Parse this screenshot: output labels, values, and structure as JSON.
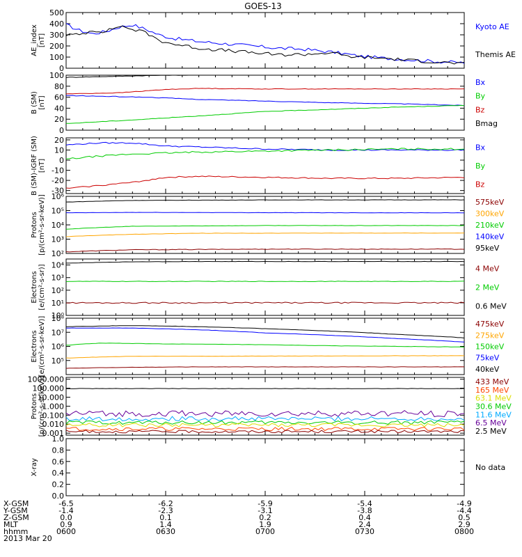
{
  "title": "GOES-13",
  "chart_data": [
    {
      "type": "line",
      "ylabel": "AE_index\n[nT]",
      "ylim": [
        0,
        500
      ],
      "yticks": [
        {
          "v": 0,
          "t": "0"
        },
        {
          "v": 100,
          "t": "100"
        },
        {
          "v": 200,
          "t": "200"
        },
        {
          "v": 300,
          "t": "300"
        },
        {
          "v": 400,
          "t": "400"
        },
        {
          "v": 500,
          "t": "500"
        }
      ],
      "legend": [
        {
          "text": "Kyoto AE",
          "color": "#0000ff"
        },
        {
          "text": "Themis AE",
          "color": "#000000"
        }
      ],
      "series": [
        {
          "name": "Kyoto AE",
          "color": "#0000ff",
          "noise": 15,
          "x": [
            0,
            4,
            8,
            12,
            16,
            20,
            24,
            28,
            32,
            40,
            48,
            56,
            64,
            72,
            80,
            84,
            88,
            96,
            104,
            112,
            120
          ],
          "y": [
            390,
            340,
            310,
            330,
            370,
            390,
            350,
            300,
            270,
            240,
            220,
            200,
            180,
            170,
            145,
            130,
            110,
            90,
            75,
            60,
            50
          ]
        },
        {
          "name": "Themis AE",
          "color": "#000000",
          "noise": 15,
          "x": [
            0,
            4,
            8,
            12,
            16,
            20,
            24,
            28,
            32,
            40,
            48,
            56,
            64,
            72,
            80,
            84,
            88,
            96,
            104,
            112,
            120
          ],
          "y": [
            300,
            300,
            340,
            330,
            380,
            350,
            320,
            250,
            220,
            180,
            160,
            140,
            120,
            125,
            140,
            110,
            100,
            90,
            70,
            55,
            40
          ]
        }
      ]
    },
    {
      "type": "line",
      "ylabel": "B (SM)\n[nT]",
      "ylim": [
        0,
        100
      ],
      "yticks": [
        {
          "v": 0,
          "t": "0"
        },
        {
          "v": 20,
          "t": "20"
        },
        {
          "v": 40,
          "t": "40"
        },
        {
          "v": 60,
          "t": "60"
        },
        {
          "v": 80,
          "t": "80"
        },
        {
          "v": 100,
          "t": "100"
        }
      ],
      "legend": [
        {
          "text": "Bx",
          "color": "#0000ff"
        },
        {
          "text": "By",
          "color": "#00cc00"
        },
        {
          "text": "Bz",
          "color": "#cc0000"
        },
        {
          "text": "Bmag",
          "color": "#000000"
        }
      ],
      "series": [
        {
          "name": "Bmag",
          "color": "#000000",
          "noise": 0.5,
          "x": [
            0,
            30,
            60,
            120
          ],
          "y": [
            96,
            100,
            101,
            102
          ]
        },
        {
          "name": "Bz",
          "color": "#cc0000",
          "noise": 0.5,
          "x": [
            0,
            16,
            30,
            40,
            60,
            120
          ],
          "y": [
            66,
            68,
            74,
            76,
            75,
            75
          ]
        },
        {
          "name": "Bx",
          "color": "#0000ff",
          "noise": 0.5,
          "x": [
            0,
            24,
            40,
            60,
            80,
            100,
            120
          ],
          "y": [
            63,
            60,
            56,
            53,
            50,
            48,
            45
          ]
        },
        {
          "name": "By",
          "color": "#00cc00",
          "noise": 0.5,
          "x": [
            0,
            24,
            40,
            60,
            80,
            100,
            120
          ],
          "y": [
            12,
            20,
            26,
            34,
            38,
            42,
            45
          ]
        }
      ]
    },
    {
      "type": "line",
      "ylabel": "B (SM)-IGRF (SM)\n[nT]",
      "ylim": [
        -33,
        22
      ],
      "yticks": [
        {
          "v": -30,
          "t": "-30"
        },
        {
          "v": -20,
          "t": "-20"
        },
        {
          "v": -10,
          "t": "-10"
        },
        {
          "v": 0,
          "t": "0"
        },
        {
          "v": 10,
          "t": "10"
        },
        {
          "v": 20,
          "t": "20"
        }
      ],
      "legend": [
        {
          "text": "Bx",
          "color": "#0000ff"
        },
        {
          "text": "By",
          "color": "#00cc00"
        },
        {
          "text": "Bz",
          "color": "#cc0000"
        }
      ],
      "series": [
        {
          "name": "Bx",
          "color": "#0000ff",
          "noise": 0.6,
          "x": [
            0,
            10,
            20,
            30,
            40,
            60,
            80,
            100,
            120
          ],
          "y": [
            15,
            17,
            17,
            14,
            13,
            11,
            10,
            10,
            10
          ]
        },
        {
          "name": "By",
          "color": "#00cc00",
          "noise": 0.8,
          "x": [
            0,
            10,
            20,
            30,
            40,
            60,
            80,
            100,
            120
          ],
          "y": [
            1,
            4,
            6,
            7,
            8,
            9,
            10,
            11,
            11
          ]
        },
        {
          "name": "Bz",
          "color": "#cc0000",
          "noise": 0.6,
          "x": [
            0,
            10,
            20,
            30,
            40,
            60,
            80,
            100,
            120
          ],
          "y": [
            -28,
            -25,
            -22,
            -17,
            -16,
            -17,
            -18,
            -18,
            -17
          ]
        }
      ]
    },
    {
      "type": "line",
      "log": true,
      "ylabel": "Protons\n[p/(cm²-s-sr-keV)]",
      "ylim": [
        100,
        1000000
      ],
      "yticks": [
        {
          "v": 100,
          "t": "10²"
        },
        {
          "v": 1000,
          "t": "10³"
        },
        {
          "v": 10000,
          "t": "10⁴"
        },
        {
          "v": 100000,
          "t": "10⁵"
        },
        {
          "v": 1000000,
          "t": "10⁶"
        }
      ],
      "legend": [
        {
          "text": "575keV",
          "color": "#8b0000"
        },
        {
          "text": "300keV",
          "color": "#ffa500"
        },
        {
          "text": "210keV",
          "color": "#00cc00"
        },
        {
          "text": "140keV",
          "color": "#0000ff"
        },
        {
          "text": "95keV",
          "color": "#000000"
        }
      ],
      "series": [
        {
          "name": "95keV",
          "color": "#000000",
          "noise": 0.01,
          "x": [
            0,
            20,
            60,
            120
          ],
          "y": [
            400000,
            520000,
            560000,
            570000
          ]
        },
        {
          "name": "140keV",
          "color": "#0000ff",
          "noise": 0.01,
          "x": [
            0,
            20,
            60,
            120
          ],
          "y": [
            70000,
            75000,
            72000,
            70000
          ]
        },
        {
          "name": "210keV",
          "color": "#00cc00",
          "noise": 0.01,
          "x": [
            0,
            20,
            60,
            120
          ],
          "y": [
            5000,
            8000,
            9000,
            9000
          ]
        },
        {
          "name": "300keV",
          "color": "#ffa500",
          "noise": 0.01,
          "x": [
            0,
            20,
            40,
            120
          ],
          "y": [
            1500,
            2200,
            2600,
            2700
          ]
        },
        {
          "name": "575keV",
          "color": "#8b0000",
          "noise": 0.02,
          "x": [
            0,
            20,
            60,
            120
          ],
          "y": [
            130,
            180,
            200,
            200
          ]
        }
      ]
    },
    {
      "type": "line",
      "log": true,
      "ylabel": "Electrons\n[e/(cm²-s-sr)]",
      "ylim": [
        1,
        30000
      ],
      "yticks": [
        {
          "v": 1,
          "t": "10⁰"
        },
        {
          "v": 10,
          "t": "10¹"
        },
        {
          "v": 100,
          "t": "10²"
        },
        {
          "v": 1000,
          "t": "10³"
        },
        {
          "v": 10000,
          "t": "10⁴"
        }
      ],
      "legend": [
        {
          "text": "4 MeV",
          "color": "#8b0000"
        },
        {
          "text": "2 MeV",
          "color": "#00cc00"
        },
        {
          "text": "0.6 MeV",
          "color": "#000000"
        }
      ],
      "series": [
        {
          "name": "0.6 MeV",
          "color": "#000000",
          "noise": 0.01,
          "x": [
            0,
            20,
            40,
            120
          ],
          "y": [
            14000,
            18000,
            19000,
            19000
          ]
        },
        {
          "name": "2 MeV",
          "color": "#00cc00",
          "noise": 0.02,
          "x": [
            0,
            120
          ],
          "y": [
            500,
            500
          ]
        },
        {
          "name": "4 MeV",
          "color": "#8b0000",
          "noise": 0.05,
          "x": [
            0,
            120
          ],
          "y": [
            10,
            10
          ]
        }
      ]
    },
    {
      "type": "line",
      "log": true,
      "ylabel": "Electrons\n[e/(cm²-s-sr-keV)]",
      "ylim": [
        10000,
        100000000
      ],
      "yticks": [
        {
          "v": 100000,
          "t": "10⁵"
        },
        {
          "v": 1000000,
          "t": "10⁶"
        },
        {
          "v": 10000000,
          "t": "10⁷"
        },
        {
          "v": 100000000,
          "t": "10⁸"
        }
      ],
      "legend": [
        {
          "text": "475keV",
          "color": "#8b0000"
        },
        {
          "text": "275keV",
          "color": "#ffa500"
        },
        {
          "text": "150keV",
          "color": "#00cc00"
        },
        {
          "text": "75keV",
          "color": "#0000ff"
        },
        {
          "text": "40keV",
          "color": "#000000"
        }
      ],
      "series": [
        {
          "name": "40keV",
          "color": "#000000",
          "noise": 0.01,
          "x": [
            0,
            20,
            40,
            60,
            80,
            100,
            120
          ],
          "y": [
            25000000,
            30000000,
            25000000,
            18000000,
            12000000,
            7000000,
            4000000
          ]
        },
        {
          "name": "75keV",
          "color": "#0000ff",
          "noise": 0.01,
          "x": [
            0,
            20,
            40,
            60,
            80,
            100,
            120
          ],
          "y": [
            20000000,
            20000000,
            15000000,
            9000000,
            6000000,
            3500000,
            2000000
          ]
        },
        {
          "name": "150keV",
          "color": "#00cc00",
          "noise": 0.01,
          "x": [
            0,
            10,
            30,
            60,
            80,
            120
          ],
          "y": [
            1200000,
            1700000,
            1500000,
            1300000,
            1100000,
            900000
          ]
        },
        {
          "name": "275keV",
          "color": "#ffa500",
          "noise": 0.01,
          "x": [
            0,
            20,
            40,
            120
          ],
          "y": [
            150000,
            200000,
            200000,
            220000
          ]
        },
        {
          "name": "475keV",
          "color": "#8b0000",
          "noise": 0.01,
          "x": [
            0,
            20,
            40,
            120
          ],
          "y": [
            28000,
            33000,
            35000,
            35000
          ]
        }
      ]
    },
    {
      "type": "line",
      "log": true,
      "ylabel": "Protons\n[p/(cm²-s-sr-keV)]",
      "ylim": [
        0.0006,
        1600
      ],
      "yticks": [
        {
          "v": 0.001,
          "t": "0.001"
        },
        {
          "v": 0.01,
          "t": "0.010"
        },
        {
          "v": 0.1,
          "t": "0.100"
        },
        {
          "v": 1,
          "t": "1.000"
        },
        {
          "v": 10,
          "t": "10.000"
        },
        {
          "v": 100,
          "t": "100.000"
        },
        {
          "v": 1000,
          "t": "1000.000"
        }
      ],
      "legend": [
        {
          "text": "433 MeV",
          "color": "#8b0000"
        },
        {
          "text": "165 MeV",
          "color": "#ff4500"
        },
        {
          "text": "63.1 MeV",
          "color": "#dddd00"
        },
        {
          "text": "30.6 MeV",
          "color": "#00cc00"
        },
        {
          "text": "11.6 MeV",
          "color": "#00aaff"
        },
        {
          "text": "6.5 MeV",
          "color": "#660099"
        },
        {
          "text": "2.5 MeV",
          "color": "#000000"
        }
      ],
      "series": [
        {
          "name": "2.5 MeV",
          "color": "#000000",
          "noise": 0.02,
          "x": [
            0,
            120
          ],
          "y": [
            90,
            90
          ]
        },
        {
          "name": "6.5 MeV",
          "color": "#660099",
          "noise": 0.35,
          "x": [
            0,
            120
          ],
          "y": [
            0.15,
            0.15
          ]
        },
        {
          "name": "11.6 MeV",
          "color": "#00aaff",
          "noise": 0.25,
          "x": [
            0,
            120
          ],
          "y": [
            0.04,
            0.04
          ]
        },
        {
          "name": "30.6 MeV",
          "color": "#00cc00",
          "noise": 0.2,
          "x": [
            0,
            120
          ],
          "y": [
            0.015,
            0.015
          ]
        },
        {
          "name": "63.1 MeV",
          "color": "#dddd00",
          "noise": 0.2,
          "x": [
            0,
            120
          ],
          "y": [
            0.008,
            0.008
          ]
        },
        {
          "name": "165 MeV",
          "color": "#ff4500",
          "noise": 0.2,
          "x": [
            0,
            120
          ],
          "y": [
            0.003,
            0.003
          ]
        },
        {
          "name": "433 MeV",
          "color": "#8b0000",
          "noise": 0.15,
          "x": [
            0,
            120
          ],
          "y": [
            0.0015,
            0.0015
          ]
        }
      ]
    },
    {
      "type": "line",
      "ylabel": "X-ray",
      "ylim": [
        0,
        1
      ],
      "yticks": [
        {
          "v": 0,
          "t": "0.0"
        },
        {
          "v": 0.2,
          "t": "0.2"
        },
        {
          "v": 0.4,
          "t": "0.4"
        },
        {
          "v": 0.6,
          "t": "0.6"
        },
        {
          "v": 0.8,
          "t": "0.8"
        },
        {
          "v": 1,
          "t": "1.0"
        }
      ],
      "note": "No data",
      "series": []
    }
  ],
  "xaxis": {
    "label_rows": [
      "X-GSM",
      "Y-GSM",
      "Z-GSM",
      "MLT",
      "hhmm"
    ],
    "date": "2013 Mar 20",
    "columns": [
      {
        "x": 0,
        "values": [
          "-6.5",
          "-1.4",
          "0.0",
          "0.9",
          "0600"
        ]
      },
      {
        "x": 30,
        "values": [
          "-6.2",
          "-2.3",
          "0.1",
          "1.4",
          "0630"
        ]
      },
      {
        "x": 60,
        "values": [
          "-5.9",
          "-3.1",
          "0.2",
          "1.9",
          "0700"
        ]
      },
      {
        "x": 90,
        "values": [
          "-5.4",
          "-3.8",
          "0.4",
          "2.4",
          "0730"
        ]
      },
      {
        "x": 120,
        "values": [
          "-4.9",
          "-4.4",
          "0.5",
          "2.9",
          "0800"
        ]
      }
    ]
  }
}
